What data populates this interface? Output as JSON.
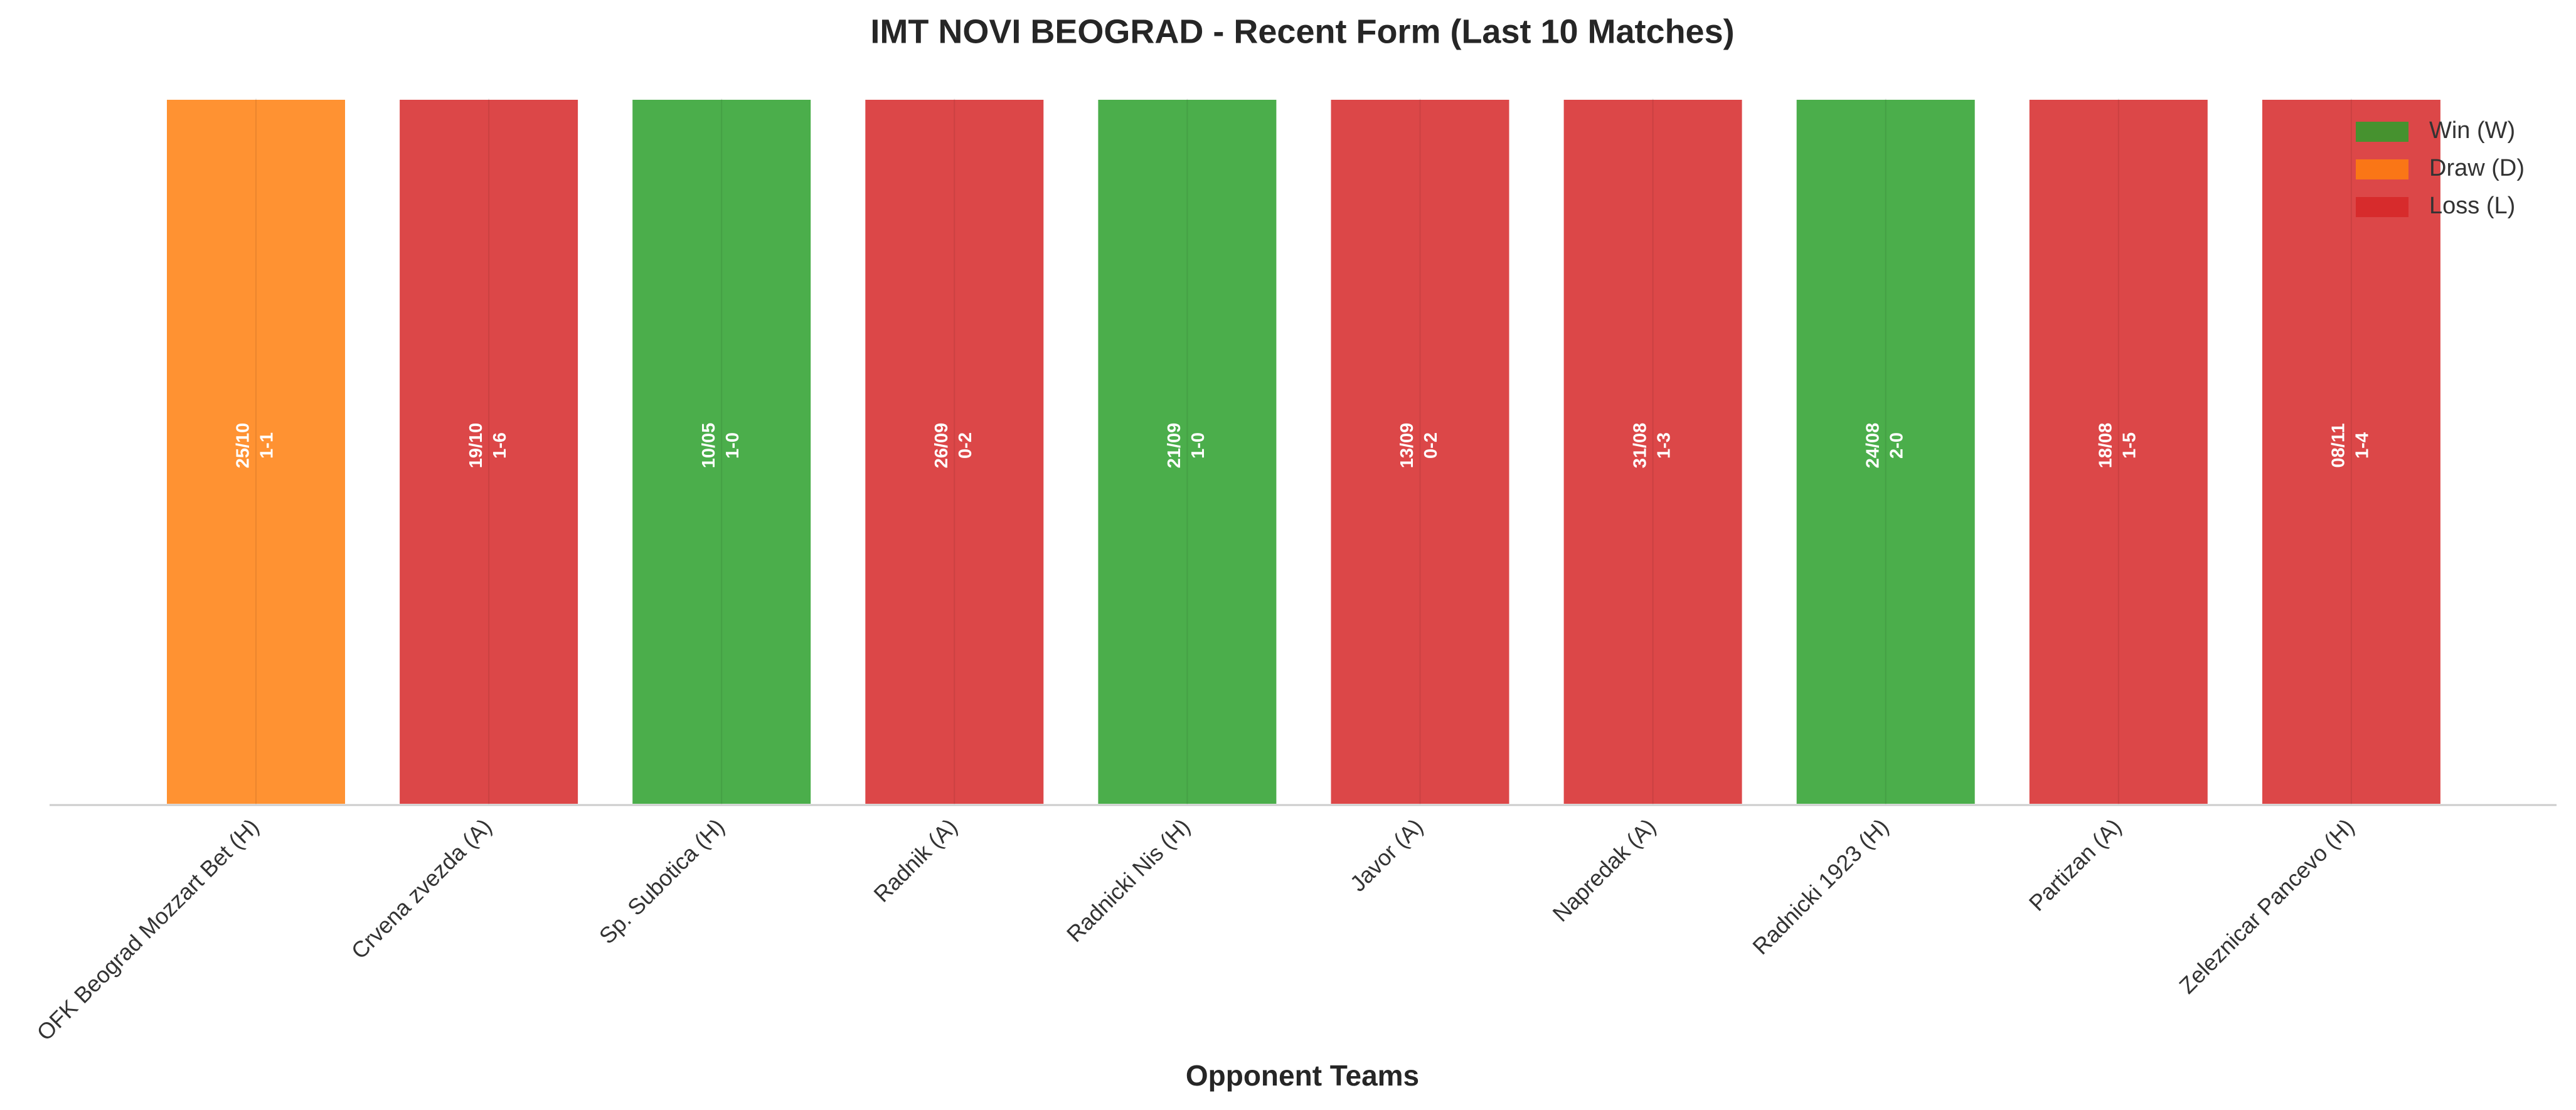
{
  "chart_data": {
    "type": "bar",
    "title": "IMT NOVI BEOGRAD - Recent Form (Last 10 Matches)",
    "x_label": "Opponent Teams",
    "categories": [
      "OFK Beograd Mozzart Bet (H)",
      "Crvena zvezda (A)",
      "Sp. Subotica (H)",
      "Radnik (A)",
      "Radnicki Nis (H)",
      "Javor (A)",
      "Napredak (A)",
      "Radnicki 1923 (H)",
      "Partizan (A)",
      "Zeleznicar Pancevo (H)"
    ],
    "values": [
      1,
      1,
      1,
      1,
      1,
      1,
      1,
      1,
      1,
      1
    ],
    "colors": [
      "#ff7f0e",
      "#d62728",
      "#2ca02c",
      "#d62728",
      "#2ca02c",
      "#d62728",
      "#d62728",
      "#2ca02c",
      "#d62728",
      "#d62728"
    ],
    "annotations": [
      {
        "date": "25/10",
        "score": "1-1"
      },
      {
        "date": "19/10",
        "score": "1-6"
      },
      {
        "date": "10/05",
        "score": "1-0"
      },
      {
        "date": "26/09",
        "score": "0-2"
      },
      {
        "date": "21/09",
        "score": "1-0"
      },
      {
        "date": "13/09",
        "score": "0-2"
      },
      {
        "date": "31/08",
        "score": "1-3"
      },
      {
        "date": "24/08",
        "score": "2-0"
      },
      {
        "date": "18/08",
        "score": "1-5"
      },
      {
        "date": "08/11",
        "score": "1-4"
      }
    ],
    "ylim": [
      0,
      1
    ],
    "legend": [
      {
        "name": "Win (W)",
        "color": "#2ca02c"
      },
      {
        "name": "Draw (D)",
        "color": "#ff7f0e"
      },
      {
        "name": "Loss (L)",
        "color": "#d62728"
      }
    ],
    "legend_position": "upper right"
  }
}
